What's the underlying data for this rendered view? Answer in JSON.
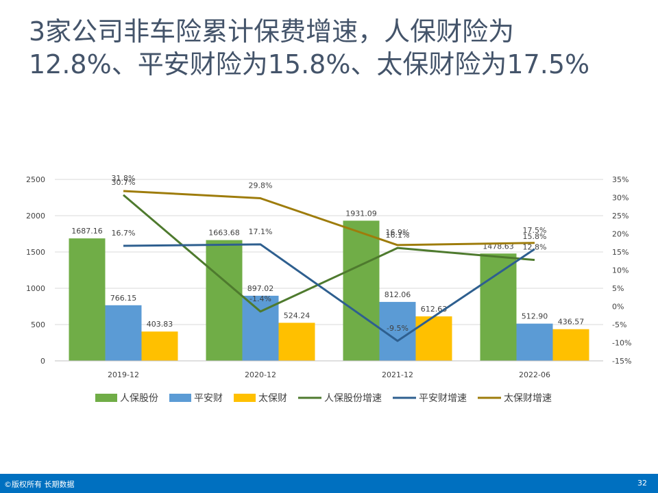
{
  "page": {
    "title_line1": "3家公司非车险累计保费增速，人保财险为",
    "title_line2": "12.8%、平安财险为15.8%、太保财险为17.5%"
  },
  "footer": {
    "copyright": "©版权所有 长期数据",
    "page_number": "32"
  },
  "chart_data": {
    "type": "bar",
    "categories": [
      "2019-12",
      "2020-12",
      "2021-12",
      "2022-06"
    ],
    "ylim": [
      0,
      2500
    ],
    "y_ticks": [
      "0",
      "500",
      "1000",
      "1500",
      "2000",
      "2500"
    ],
    "y2lim": [
      -15,
      35
    ],
    "y2_ticks": [
      "-15%",
      "-10%",
      "-5%",
      "0%",
      "5%",
      "10%",
      "15%",
      "20%",
      "25%",
      "30%",
      "35%"
    ],
    "grid": true,
    "legend_position": "bottom",
    "bar_series": [
      {
        "name": "人保股份",
        "color": "#70ad47",
        "values": [
          1687.16,
          1663.68,
          1931.09,
          1478.63
        ],
        "labels": [
          "1687.16",
          "1663.68",
          "1931.09",
          "1478.63"
        ]
      },
      {
        "name": "平安财",
        "color": "#5b9bd5",
        "values": [
          766.15,
          897.02,
          812.06,
          512.9
        ],
        "labels": [
          "766.15",
          "897.02",
          "812.06",
          "512.90"
        ]
      },
      {
        "name": "太保财",
        "color": "#ffc000",
        "values": [
          403.83,
          524.24,
          612.63,
          436.57
        ],
        "labels": [
          "403.83",
          "524.24",
          "612.63",
          "436.57"
        ]
      }
    ],
    "line_series": [
      {
        "name": "人保股份增速",
        "color": "#4e7a2e",
        "values": [
          30.7,
          -1.4,
          16.1,
          12.8
        ],
        "labels": [
          "30.7%",
          "-1.4%",
          "16.1%",
          "12.8%"
        ]
      },
      {
        "name": "平安财增速",
        "color": "#2e5f8f",
        "values": [
          16.7,
          17.1,
          -9.5,
          15.8
        ],
        "labels": [
          "16.7%",
          "17.1%",
          "-9.5%",
          "15.8%"
        ]
      },
      {
        "name": "太保财增速",
        "color": "#9e7c0b",
        "values": [
          31.8,
          29.8,
          16.9,
          17.5
        ],
        "labels": [
          "31.8%",
          "29.8%",
          "16.9%",
          "17.5%"
        ]
      }
    ]
  }
}
